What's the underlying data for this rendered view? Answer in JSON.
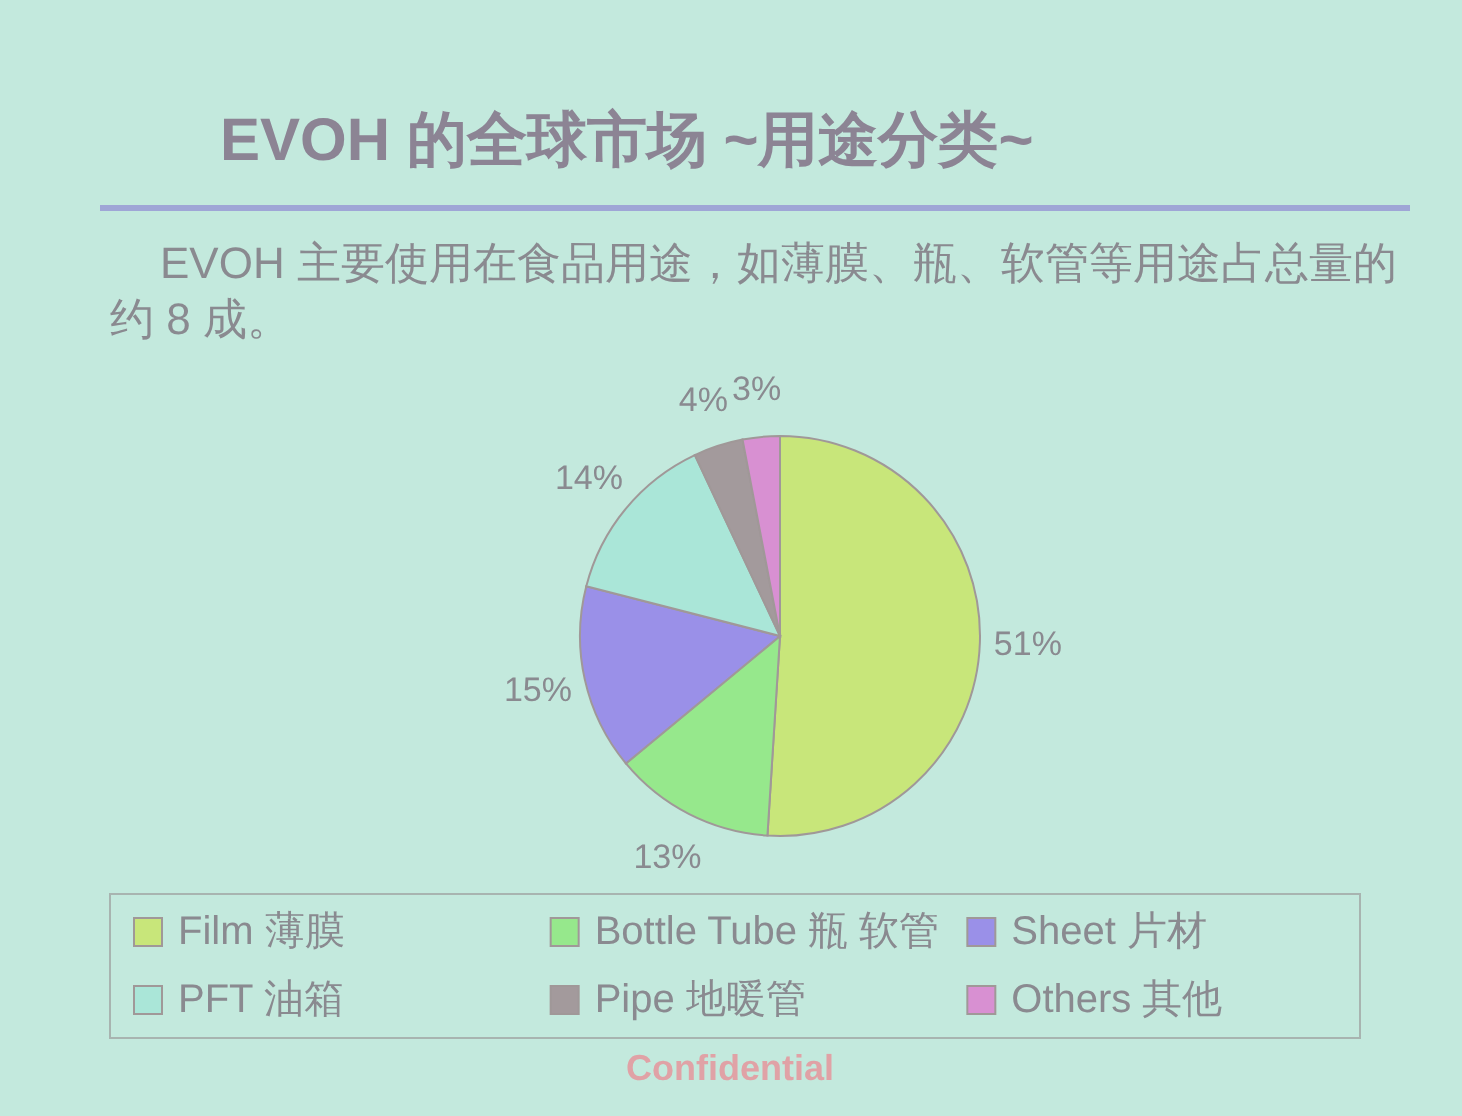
{
  "chart_data": {
    "type": "pie",
    "title": "EVOH 的全球市场 ~用途分类~",
    "subtitle": "EVOH 主要使用在食品用途，如薄膜、瓶、软管等用途占总量的约 8 成。",
    "categories": [
      "Film 薄膜",
      "Bottle Tube 瓶 软管",
      "Sheet 片材",
      "PFT 油箱",
      "Pipe 地暖管",
      "Others 其他"
    ],
    "values": [
      51,
      13,
      15,
      14,
      4,
      3
    ],
    "colors": [
      "#c8e67a",
      "#96e88c",
      "#9a90e8",
      "#aae6d8",
      "#a39a9c",
      "#d890d2"
    ],
    "value_labels": [
      "51%",
      "13%",
      "15%",
      "14%",
      "4%",
      "3%"
    ],
    "legend": "bottom",
    "annotations": [
      "Confidential"
    ]
  }
}
